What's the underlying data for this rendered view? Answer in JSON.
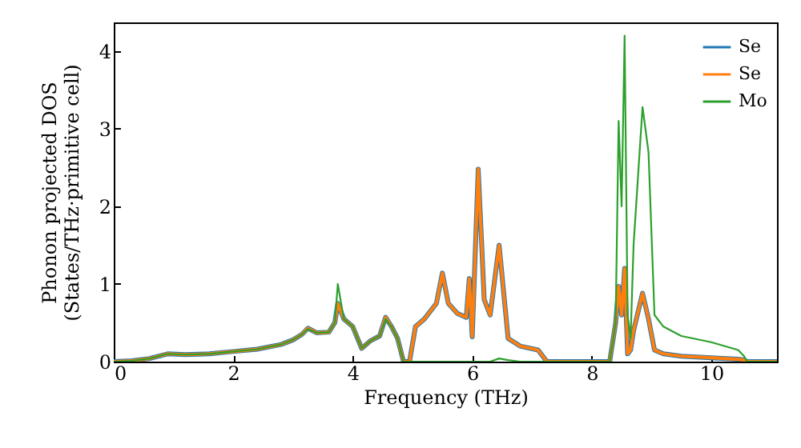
{
  "chart_data": {
    "type": "line",
    "xlabel": "Frequency (THz)",
    "ylabel": "Phonon projected DOS\n(States/THz·primitive cell)",
    "x": [
      0,
      0.3,
      0.6,
      0.9,
      1.2,
      1.6,
      2,
      2.4,
      2.8,
      3.0,
      3.15,
      3.25,
      3.4,
      3.6,
      3.7,
      3.75,
      3.85,
      4.0,
      4.15,
      4.3,
      4.45,
      4.55,
      4.65,
      4.75,
      4.85,
      4.95,
      5.05,
      5.2,
      5.4,
      5.5,
      5.6,
      5.75,
      5.9,
      5.95,
      6.0,
      6.1,
      6.2,
      6.3,
      6.45,
      6.6,
      6.8,
      7.1,
      7.25,
      7.5,
      8.0,
      8.3,
      8.4,
      8.45,
      8.5,
      8.55,
      8.6,
      8.65,
      8.7,
      8.85,
      8.95,
      9.05,
      9.2,
      9.5,
      10,
      10.45,
      10.55,
      10.6,
      11.1
    ],
    "series": [
      {
        "name": "Se",
        "color": "#1f77b4",
        "values": [
          0,
          0.01,
          0.04,
          0.1,
          0.09,
          0.1,
          0.13,
          0.16,
          0.22,
          0.28,
          0.35,
          0.43,
          0.37,
          0.38,
          0.5,
          0.75,
          0.55,
          0.45,
          0.17,
          0.27,
          0.33,
          0.57,
          0.45,
          0.3,
          0,
          0,
          0.45,
          0.55,
          0.75,
          1.14,
          0.75,
          0.62,
          0.57,
          1.07,
          0.32,
          2.48,
          0.8,
          0.6,
          1.5,
          0.3,
          0.2,
          0.15,
          0,
          0,
          0,
          0,
          0.5,
          0.97,
          0.6,
          1.2,
          0.1,
          0.15,
          0.4,
          0.88,
          0.55,
          0.15,
          0.1,
          0.07,
          0.05,
          0.03,
          0.02,
          0,
          0
        ]
      },
      {
        "name": "Se",
        "color": "#ff7f0e",
        "values": [
          0,
          0.01,
          0.04,
          0.1,
          0.09,
          0.1,
          0.13,
          0.16,
          0.22,
          0.28,
          0.35,
          0.43,
          0.37,
          0.38,
          0.5,
          0.75,
          0.55,
          0.45,
          0.17,
          0.27,
          0.33,
          0.57,
          0.45,
          0.3,
          0,
          0,
          0.45,
          0.55,
          0.75,
          1.14,
          0.75,
          0.62,
          0.57,
          1.07,
          0.32,
          2.48,
          0.8,
          0.6,
          1.5,
          0.3,
          0.2,
          0.15,
          0,
          0,
          0,
          0,
          0.5,
          0.97,
          0.6,
          1.2,
          0.1,
          0.15,
          0.4,
          0.88,
          0.55,
          0.15,
          0.1,
          0.07,
          0.05,
          0.03,
          0.02,
          0,
          0
        ]
      },
      {
        "name": "Mo",
        "color": "#2ca02c",
        "values": [
          0,
          0.01,
          0.04,
          0.1,
          0.09,
          0.1,
          0.13,
          0.16,
          0.22,
          0.28,
          0.35,
          0.42,
          0.37,
          0.38,
          0.5,
          1.0,
          0.55,
          0.45,
          0.17,
          0.27,
          0.33,
          0.55,
          0.45,
          0.3,
          0,
          0,
          0,
          0,
          0,
          0,
          0,
          0,
          0,
          0,
          0,
          0,
          0,
          0,
          0.04,
          0.02,
          0,
          0,
          0,
          0,
          0,
          0,
          0.5,
          3.1,
          2.0,
          4.2,
          0.6,
          0.3,
          1.5,
          3.28,
          2.7,
          0.6,
          0.45,
          0.33,
          0.25,
          0.15,
          0.07,
          0,
          0
        ]
      }
    ],
    "xlim": [
      0,
      11.1
    ],
    "xticks": [
      0,
      2,
      4,
      6,
      8,
      10
    ],
    "ylim": [
      0,
      4.37
    ],
    "yticks": [
      0,
      1,
      2,
      3,
      4
    ],
    "legend": "top right",
    "grid": false
  }
}
